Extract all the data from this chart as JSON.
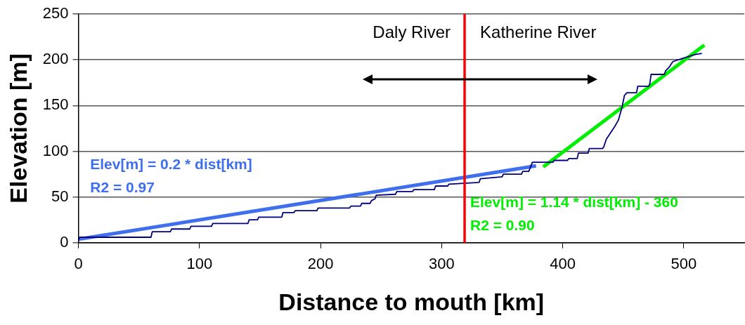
{
  "chart_data": {
    "type": "line",
    "xlabel": "Distance to mouth [km]",
    "ylabel": "Elevation [m]",
    "xlim": [
      0,
      550
    ],
    "xticks": [
      0,
      100,
      200,
      300,
      400,
      500
    ],
    "ylim": [
      0,
      250
    ],
    "yticks": [
      0,
      50,
      100,
      150,
      200,
      250
    ],
    "grid": "y",
    "legend": false,
    "marker": "none",
    "line_style": "solid",
    "series": [
      {
        "color": "#000080",
        "x": [
          0,
          1,
          60,
          61,
          76,
          77,
          92,
          93,
          110,
          111,
          140,
          141,
          148,
          149,
          168,
          169,
          178,
          179,
          197,
          198,
          224,
          225,
          233,
          234,
          241,
          242,
          245,
          246,
          262,
          263,
          276,
          277,
          294,
          295,
          305,
          306,
          331,
          332,
          350,
          351,
          366,
          367,
          372,
          375,
          392,
          393,
          404,
          405,
          412,
          413,
          421,
          422,
          433,
          434,
          436,
          440,
          443,
          446,
          449,
          451,
          453,
          461,
          462,
          471,
          472,
          473,
          484,
          485,
          488,
          491,
          500,
          510,
          515
        ],
        "values": [
          1,
          6,
          6,
          12,
          12,
          15,
          15,
          18,
          18,
          21,
          21,
          25,
          25,
          28,
          28,
          33,
          33,
          35,
          35,
          38,
          38,
          40,
          40,
          43,
          43,
          46,
          48,
          52,
          53,
          56,
          56,
          58,
          58,
          62,
          62,
          64,
          66,
          70,
          72,
          75,
          75,
          78,
          78,
          88,
          88,
          90,
          90,
          92,
          92,
          98,
          98,
          103,
          103,
          105,
          113,
          121,
          127,
          134,
          148,
          161,
          164,
          164,
          171,
          171,
          174,
          184,
          184,
          188,
          192,
          198,
          202,
          206,
          207
        ]
      },
      {
        "name": "Elev[m] = 0.2 * dist[km]\nR2 = 0.97",
        "color": "#3f6fec",
        "x": [
          1,
          378
        ],
        "values": [
          4,
          84
        ]
      },
      {
        "name": "Elev[m] = 1.14 * dist[km] - 360\nR2 = 0.90",
        "color": "#00ee00",
        "x": [
          384,
          517
        ],
        "values": [
          83,
          216
        ]
      }
    ],
    "ref_lines": [
      {
        "axis": "x",
        "value": 319,
        "color": "#ff0000"
      }
    ],
    "annotations": [
      "Daly River",
      "Katherine River"
    ]
  }
}
